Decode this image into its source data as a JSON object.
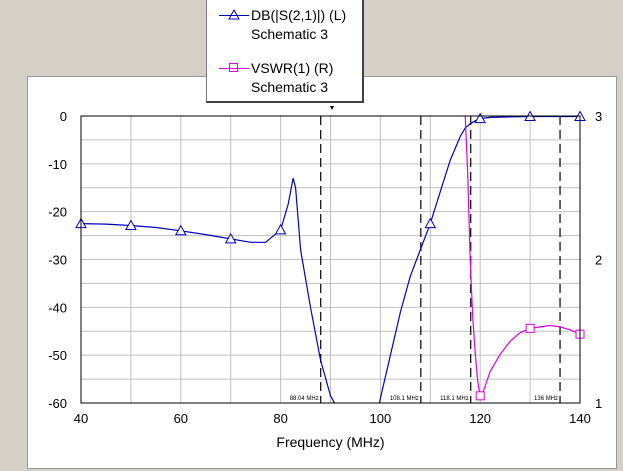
{
  "chart_data": {
    "type": "line",
    "xlabel": "Frequency (MHz)",
    "xlim": [
      40,
      140
    ],
    "x_ticks": [
      40,
      60,
      80,
      100,
      120,
      140
    ],
    "x_tick_labels": [
      "40",
      "60",
      "80",
      "100",
      "120",
      "140"
    ],
    "left_axis": {
      "ylim": [
        -60,
        0
      ],
      "ticks": [
        0,
        -10,
        -20,
        -30,
        -40,
        -50,
        -60
      ],
      "tick_labels": [
        "0",
        "-10",
        "-20",
        "-30",
        "-40",
        "-50",
        "-60"
      ]
    },
    "right_axis": {
      "ylim": [
        1,
        3
      ],
      "ticks": [
        3,
        2,
        1
      ],
      "tick_labels": [
        "3",
        "2",
        "1"
      ]
    },
    "grid": true,
    "legend": {
      "placement": "top-center"
    },
    "series": [
      {
        "name": "DB(|S(2,1)|) (L)",
        "source": "Schematic 3",
        "axis": "left",
        "color": "#0000c0",
        "marker": "triangle",
        "x": [
          40,
          45,
          50,
          55,
          60,
          65,
          70,
          74,
          77,
          80,
          81.5,
          82.5,
          83,
          84,
          86,
          88,
          90,
          94,
          98,
          99,
          100,
          102,
          104,
          106,
          108,
          110,
          112,
          114,
          116,
          117,
          118,
          119,
          120,
          122,
          125,
          130,
          135,
          140
        ],
        "y": [
          -22.5,
          -22.6,
          -22.9,
          -23.3,
          -24.0,
          -24.8,
          -25.7,
          -26.4,
          -26.4,
          -23.8,
          -18.5,
          -13.0,
          -15.0,
          -28.0,
          -40.0,
          -51.0,
          -58.5,
          -66.0,
          -66.0,
          -64.0,
          -59.0,
          -50.0,
          -41.0,
          -33.5,
          -28.0,
          -22.5,
          -15.8,
          -9.2,
          -4.3,
          -2.5,
          -1.6,
          -1.0,
          -0.55,
          -0.3,
          -0.2,
          -0.1,
          -0.1,
          -0.1
        ],
        "markers_x": [
          40,
          50,
          60,
          70,
          80,
          110,
          120,
          130,
          140
        ]
      },
      {
        "name": "VSWR(1) (R)",
        "source": "Schematic 3",
        "axis": "right",
        "color": "#e000e0",
        "marker": "square",
        "x": [
          117,
          117.5,
          118,
          118.5,
          119,
          119.5,
          120,
          120.5,
          121,
          122,
          124,
          126,
          128,
          130,
          132,
          134,
          136,
          138,
          140
        ],
        "y": [
          3.0,
          2.6,
          2.0,
          1.6,
          1.35,
          1.15,
          1.05,
          1.07,
          1.12,
          1.22,
          1.34,
          1.43,
          1.49,
          1.52,
          1.53,
          1.54,
          1.53,
          1.51,
          1.48
        ],
        "markers_x": [
          120,
          130,
          140
        ]
      }
    ],
    "markers": [
      {
        "x": 88.04,
        "label": "88.04 MHz"
      },
      {
        "x": 108.1,
        "label": "108.1 MHz"
      },
      {
        "x": 118.1,
        "label": "118.1 MHz"
      },
      {
        "x": 136,
        "label": "136 MHz"
      }
    ]
  },
  "legend": {
    "entries": [
      {
        "name": "DB(|S(2,1)|) (L)",
        "source": "Schematic 3"
      },
      {
        "name": "VSWR(1) (R)",
        "source": "Schematic 3"
      }
    ]
  }
}
